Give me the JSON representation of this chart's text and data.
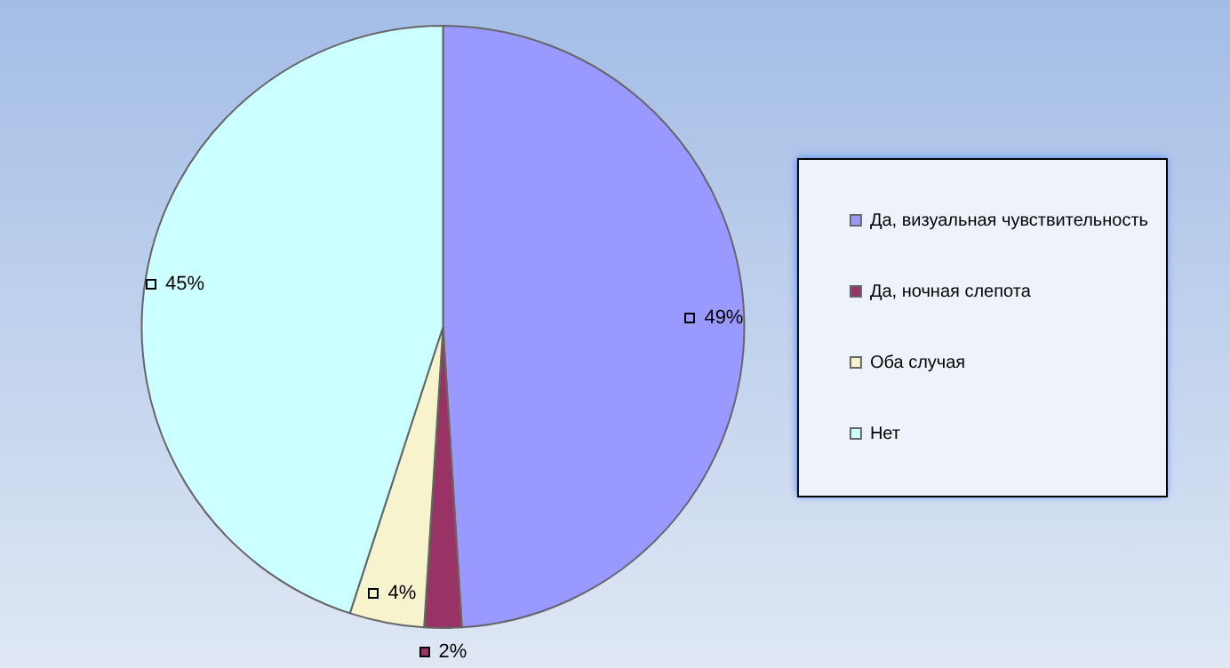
{
  "chart_data": {
    "type": "pie",
    "categories": [
      "Да, визуальная чувствительность",
      "Да, ночная слепота",
      "Оба случая",
      "Нет"
    ],
    "values": [
      49,
      2,
      4,
      45
    ],
    "colors": [
      "#9999ff",
      "#993366",
      "#f7f3cc",
      "#ccffff"
    ],
    "value_labels": [
      "49%",
      "2%",
      "4%",
      "45%"
    ],
    "legend": "right"
  }
}
